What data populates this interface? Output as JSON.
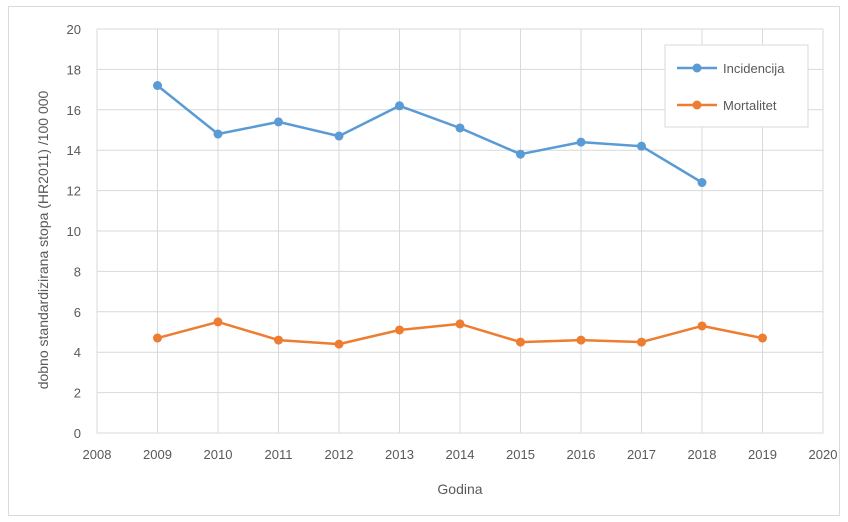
{
  "chart_data": {
    "type": "line",
    "xlabel": "Godina",
    "ylabel": "dobno standardizirana stopa (HR2011) /100 000",
    "xlim": [
      2008,
      2020
    ],
    "ylim": [
      0,
      20
    ],
    "x_ticks": [
      "2008",
      "2009",
      "2010",
      "2011",
      "2012",
      "2013",
      "2014",
      "2015",
      "2016",
      "2017",
      "2018",
      "2019",
      "2020"
    ],
    "y_ticks": [
      "0",
      "2",
      "4",
      "6",
      "8",
      "10",
      "12",
      "14",
      "16",
      "18",
      "20"
    ],
    "grid": true,
    "legend_position": "top-right",
    "series": [
      {
        "name": "Incidencija",
        "color": "#5b9bd5",
        "x": [
          2009,
          2010,
          2011,
          2012,
          2013,
          2014,
          2015,
          2016,
          2017,
          2018
        ],
        "values": [
          17.2,
          14.8,
          15.4,
          14.7,
          16.2,
          15.1,
          13.8,
          14.4,
          14.2,
          12.4
        ]
      },
      {
        "name": "Mortalitet",
        "color": "#ed7d31",
        "x": [
          2009,
          2010,
          2011,
          2012,
          2013,
          2014,
          2015,
          2016,
          2017,
          2018,
          2019
        ],
        "values": [
          4.7,
          5.5,
          4.6,
          4.4,
          5.1,
          5.4,
          4.5,
          4.6,
          4.5,
          5.3,
          4.7
        ]
      }
    ]
  }
}
